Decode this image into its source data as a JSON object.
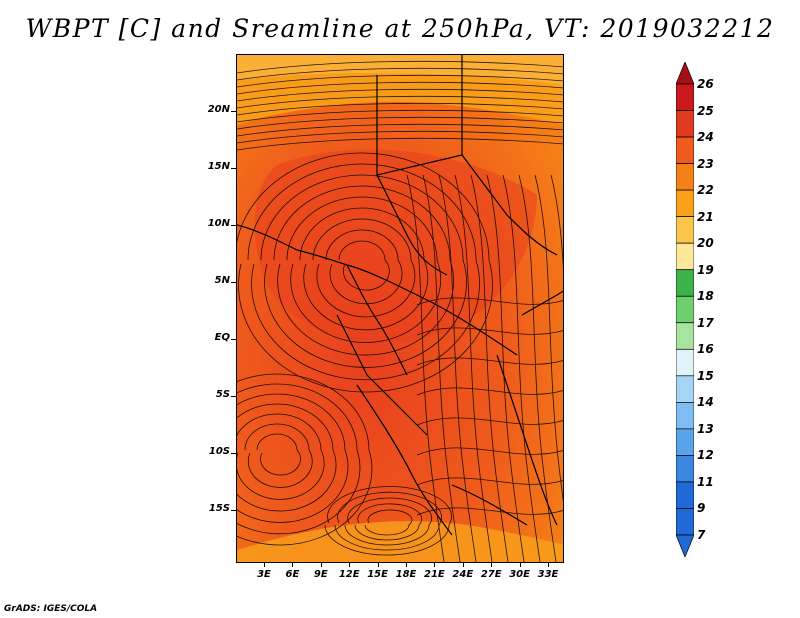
{
  "title": "WBPT [C] and Sreamline at 250hPa, VT: 2019032212",
  "credit": "GrADS: IGES/COLA",
  "map": {
    "lat_labels": [
      "20N",
      "15N",
      "10N",
      "5N",
      "EQ",
      "5S",
      "10S",
      "15S"
    ],
    "lon_labels": [
      "3E",
      "6E",
      "9E",
      "12E",
      "15E",
      "18E",
      "21E",
      "24E",
      "27E",
      "30E",
      "33E"
    ],
    "background_color": "#f26a14"
  },
  "colorbar": {
    "levels": [
      "26",
      "25",
      "24",
      "23",
      "22",
      "21",
      "20",
      "19",
      "18",
      "17",
      "16",
      "15",
      "14",
      "13",
      "12",
      "11",
      "9",
      "7"
    ],
    "colors": [
      "#a50f15",
      "#cb181d",
      "#e03a20",
      "#f05a1e",
      "#f57f17",
      "#f9a11b",
      "#fbc44a",
      "#fde89a",
      "#3cb44b",
      "#6fcf6f",
      "#a8e4a0",
      "#e0f3f8",
      "#a6d4f5",
      "#7fbcf0",
      "#5aa2ea",
      "#3a86e0",
      "#1f6ad6",
      "#1f6ad6"
    ]
  }
}
